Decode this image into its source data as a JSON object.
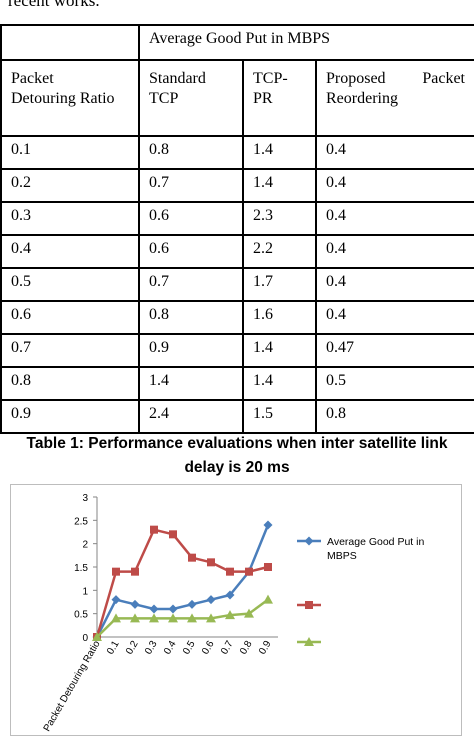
{
  "intro_text": "recent works.",
  "table": {
    "top_left": "",
    "group_header": "Average Good Put in MBPS",
    "col_ratio": [
      "Packet",
      "Detouring Ratio"
    ],
    "col_standard": [
      "Standard",
      "TCP"
    ],
    "col_tcppr": [
      "TCP-",
      "PR"
    ],
    "col_proposed": {
      "line1a": "Proposed",
      "line1b": "Packet",
      "line2": "Reordering"
    },
    "rows": [
      [
        "0.1",
        "0.8",
        "1.4",
        "0.4"
      ],
      [
        "0.2",
        "0.7",
        "1.4",
        "0.4"
      ],
      [
        "0.3",
        "0.6",
        "2.3",
        "0.4"
      ],
      [
        "0.4",
        "0.6",
        "2.2",
        "0.4"
      ],
      [
        "0.5",
        "0.7",
        "1.7",
        "0.4"
      ],
      [
        "0.6",
        "0.8",
        "1.6",
        "0.4"
      ],
      [
        "0.7",
        "0.9",
        "1.4",
        "0.47"
      ],
      [
        "0.8",
        "1.4",
        "1.4",
        "0.5"
      ],
      [
        "0.9",
        "2.4",
        "1.5",
        "0.8"
      ]
    ]
  },
  "caption": [
    "Table 1: Performance evaluations when inter satellite link",
    "delay is 20 ms"
  ],
  "chart_data": {
    "type": "line",
    "categories": [
      "Packet Detouring Ratio",
      "0.1",
      "0.2",
      "0.3",
      "0.4",
      "0.5",
      "0.6",
      "0.7",
      "0.8",
      "0.9"
    ],
    "series": [
      {
        "name": "Average Good Put in MBPS",
        "values": [
          0,
          0.8,
          0.7,
          0.6,
          0.6,
          0.7,
          0.8,
          0.9,
          1.4,
          2.4
        ],
        "color": "#4a7ebb",
        "marker": "diamond"
      },
      {
        "name": "",
        "values": [
          0,
          1.4,
          1.4,
          2.3,
          2.2,
          1.7,
          1.6,
          1.4,
          1.4,
          1.5
        ],
        "color": "#be4b48",
        "marker": "square"
      },
      {
        "name": "",
        "values": [
          0,
          0.4,
          0.4,
          0.4,
          0.4,
          0.4,
          0.4,
          0.47,
          0.5,
          0.8
        ],
        "color": "#98b954",
        "marker": "triangle"
      }
    ],
    "ylim": [
      0,
      3
    ],
    "yticks": [
      "0",
      "0.5",
      "1",
      "1.5",
      "2",
      "2.5",
      "3"
    ],
    "grid": false,
    "legend": "right",
    "legend_lines": [
      "Average Good Put in",
      "MBPS"
    ]
  }
}
